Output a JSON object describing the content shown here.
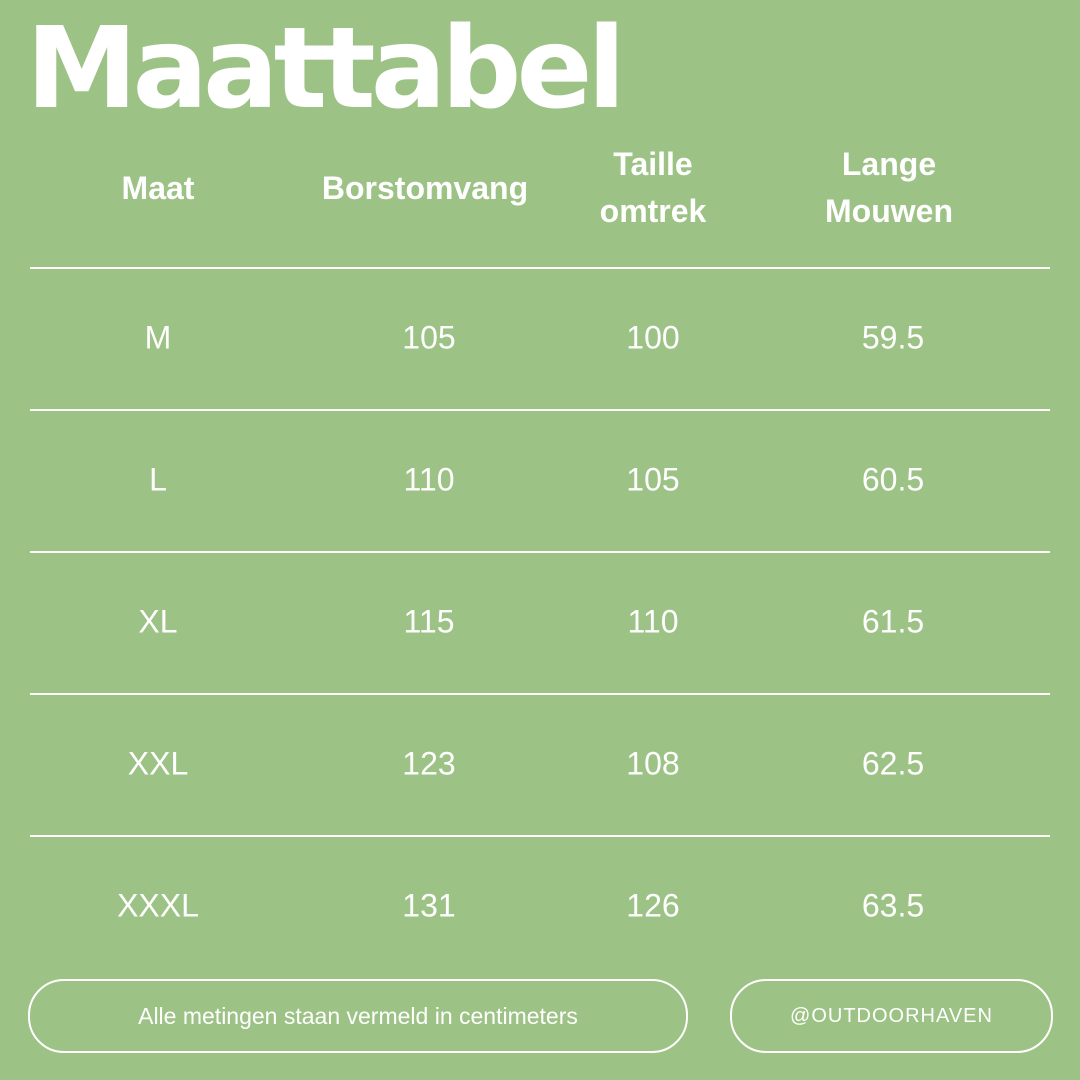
{
  "title": "Maattabel",
  "headers": [
    "Maat",
    "Borstomvang",
    "Taille\nomtrek",
    "Lange\nMouwen"
  ],
  "header_lines": [
    [
      "Maat"
    ],
    [
      "Borstomvang"
    ],
    [
      "Taille",
      "omtrek"
    ],
    [
      "Lange",
      "Mouwen"
    ]
  ],
  "rows": [
    [
      "M",
      "105",
      "100",
      "59.5"
    ],
    [
      "L",
      "110",
      "105",
      "60.5"
    ],
    [
      "XL",
      "115",
      "110",
      "61.5"
    ],
    [
      "XXL",
      "123",
      "108",
      "62.5"
    ],
    [
      "XXXL",
      "131",
      "126",
      "63.5"
    ]
  ],
  "footer": {
    "note": "Alle metingen staan vermeld in centimeters",
    "handle": "@OUTDOORHAVEN"
  },
  "colors": {
    "background": "#9dc285",
    "text": "#ffffff"
  }
}
